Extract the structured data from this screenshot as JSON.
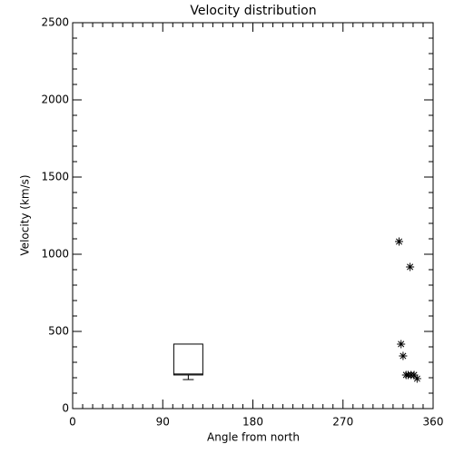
{
  "chart_data": {
    "type": "scatter",
    "title": "Velocity distribution",
    "x_label": "Angle from north",
    "y_label": "Velocity (km/s)",
    "xlim": [
      0,
      360
    ],
    "xticks": [
      0,
      90,
      180,
      270,
      360
    ],
    "ylim": [
      0,
      2500
    ],
    "yticks": [
      0,
      500,
      1000,
      1500,
      2000,
      2500
    ],
    "x_minor_intervals": 9,
    "y_minor_intervals": 5,
    "color": "#000000",
    "x": [
      326,
      337,
      328,
      330,
      333,
      335,
      338,
      341,
      344
    ],
    "values": [
      1082,
      918,
      418,
      341,
      218,
      218,
      218,
      218,
      194
    ],
    "box": {
      "x_left": 101,
      "x_right": 130,
      "low": 188,
      "q1": 218,
      "median": 224,
      "q3": 418
    }
  }
}
